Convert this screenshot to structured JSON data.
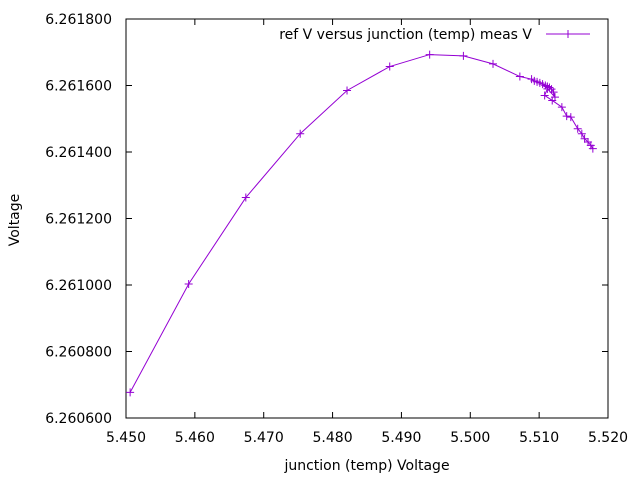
{
  "chart_data": {
    "type": "line",
    "title": "",
    "xlabel": "junction (temp) Voltage",
    "ylabel": "Voltage",
    "xlim": [
      5.45,
      5.52
    ],
    "ylim": [
      6.2606,
      6.2618
    ],
    "x_ticks": [
      5.45,
      5.46,
      5.47,
      5.48,
      5.49,
      5.5,
      5.51,
      5.52
    ],
    "x_tick_labels": [
      "5.450",
      "5.460",
      "5.470",
      "5.480",
      "5.490",
      "5.500",
      "5.510",
      "5.520"
    ],
    "y_ticks": [
      6.2606,
      6.2608,
      6.261,
      6.2612,
      6.2614,
      6.2616,
      6.2618
    ],
    "y_tick_labels": [
      "6.260600",
      "6.260800",
      "6.261000",
      "6.261200",
      "6.261400",
      "6.261600",
      "6.261800"
    ],
    "grid": false,
    "legend_position": "top-right",
    "series": [
      {
        "name": "ref V versus junction (temp) meas V",
        "color": "#9400D3",
        "marker": "plus",
        "x": [
          5.4506,
          5.4591,
          5.4674,
          5.4753,
          5.4821,
          5.4883,
          5.4941,
          5.499,
          5.5033,
          5.5072,
          5.5089,
          5.5093,
          5.5097,
          5.5101,
          5.5105,
          5.5109,
          5.5112,
          5.5115,
          5.5118,
          5.5121,
          5.5123,
          5.5112,
          5.5108,
          5.5119,
          5.5133,
          5.514,
          5.5146,
          5.5156,
          5.5162,
          5.5166,
          5.5171,
          5.5175,
          5.5178
        ],
        "y": [
          6.260677,
          6.261003,
          6.261263,
          6.261455,
          6.261585,
          6.261657,
          6.261693,
          6.261689,
          6.261665,
          6.261627,
          6.261619,
          6.261614,
          6.261611,
          6.261608,
          6.261604,
          6.2616,
          6.261597,
          6.261594,
          6.261589,
          6.26158,
          6.261565,
          6.26159,
          6.26157,
          6.261555,
          6.261535,
          6.261508,
          6.261505,
          6.26147,
          6.261455,
          6.26144,
          6.26143,
          6.26142,
          6.26141
        ]
      }
    ]
  }
}
